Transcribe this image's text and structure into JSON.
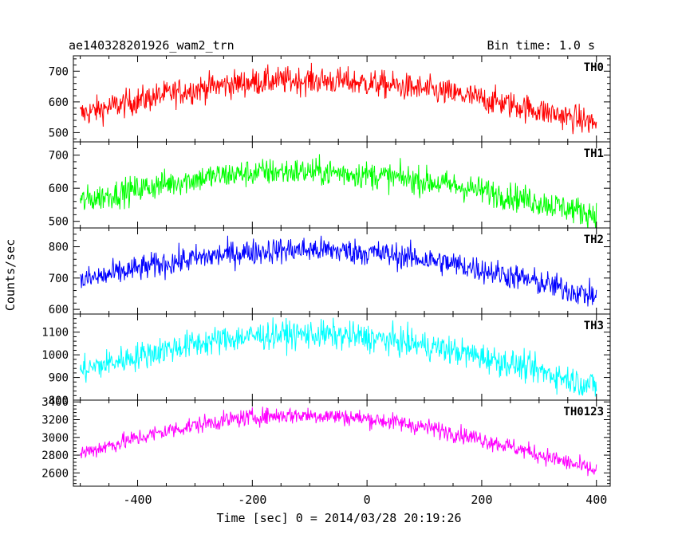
{
  "header": {
    "title": "ae140328201926_wam2_trn",
    "bin_time": "Bin time: 1.0 s"
  },
  "chart_data": {
    "type": "line",
    "x_axis": {
      "label": "Time [sec] 0 = 2014/03/28 20:19:26",
      "xlim": [
        -512,
        424
      ],
      "ticks": [
        -400,
        -200,
        0,
        200,
        400
      ],
      "data_range": [
        -500,
        400
      ]
    },
    "y_axis_label": "Counts/sec",
    "panels": [
      {
        "name": "TH0",
        "color": "#ff0000",
        "ylim": [
          470,
          750
        ],
        "ticks": [
          500,
          600,
          700
        ],
        "trend": {
          "start": 560,
          "peak": 670,
          "peak_at": -120,
          "end": 530,
          "noise": 32
        }
      },
      {
        "name": "TH1",
        "color": "#00ff00",
        "ylim": [
          480,
          740
        ],
        "ticks": [
          500,
          600,
          700
        ],
        "trend": {
          "start": 560,
          "peak": 650,
          "peak_at": -130,
          "end": 520,
          "noise": 30
        }
      },
      {
        "name": "TH2",
        "color": "#0000ff",
        "ylim": [
          585,
          860
        ],
        "ticks": [
          600,
          700,
          800
        ],
        "trend": {
          "start": 690,
          "peak": 790,
          "peak_at": -110,
          "end": 640,
          "noise": 30
        }
      },
      {
        "name": "TH3",
        "color": "#00ffff",
        "ylim": [
          800,
          1180
        ],
        "ticks": [
          800,
          900,
          1000,
          1100
        ],
        "trend": {
          "start": 930,
          "peak": 1090,
          "peak_at": -120,
          "end": 860,
          "noise": 45
        }
      },
      {
        "name": "TH0123",
        "color": "#ff00ff",
        "ylim": [
          2450,
          3420
        ],
        "ticks": [
          2600,
          2800,
          3000,
          3200,
          3400
        ],
        "trend": {
          "start": 2820,
          "peak": 3250,
          "peak_at": -120,
          "end": 2620,
          "noise": 70
        }
      }
    ]
  }
}
